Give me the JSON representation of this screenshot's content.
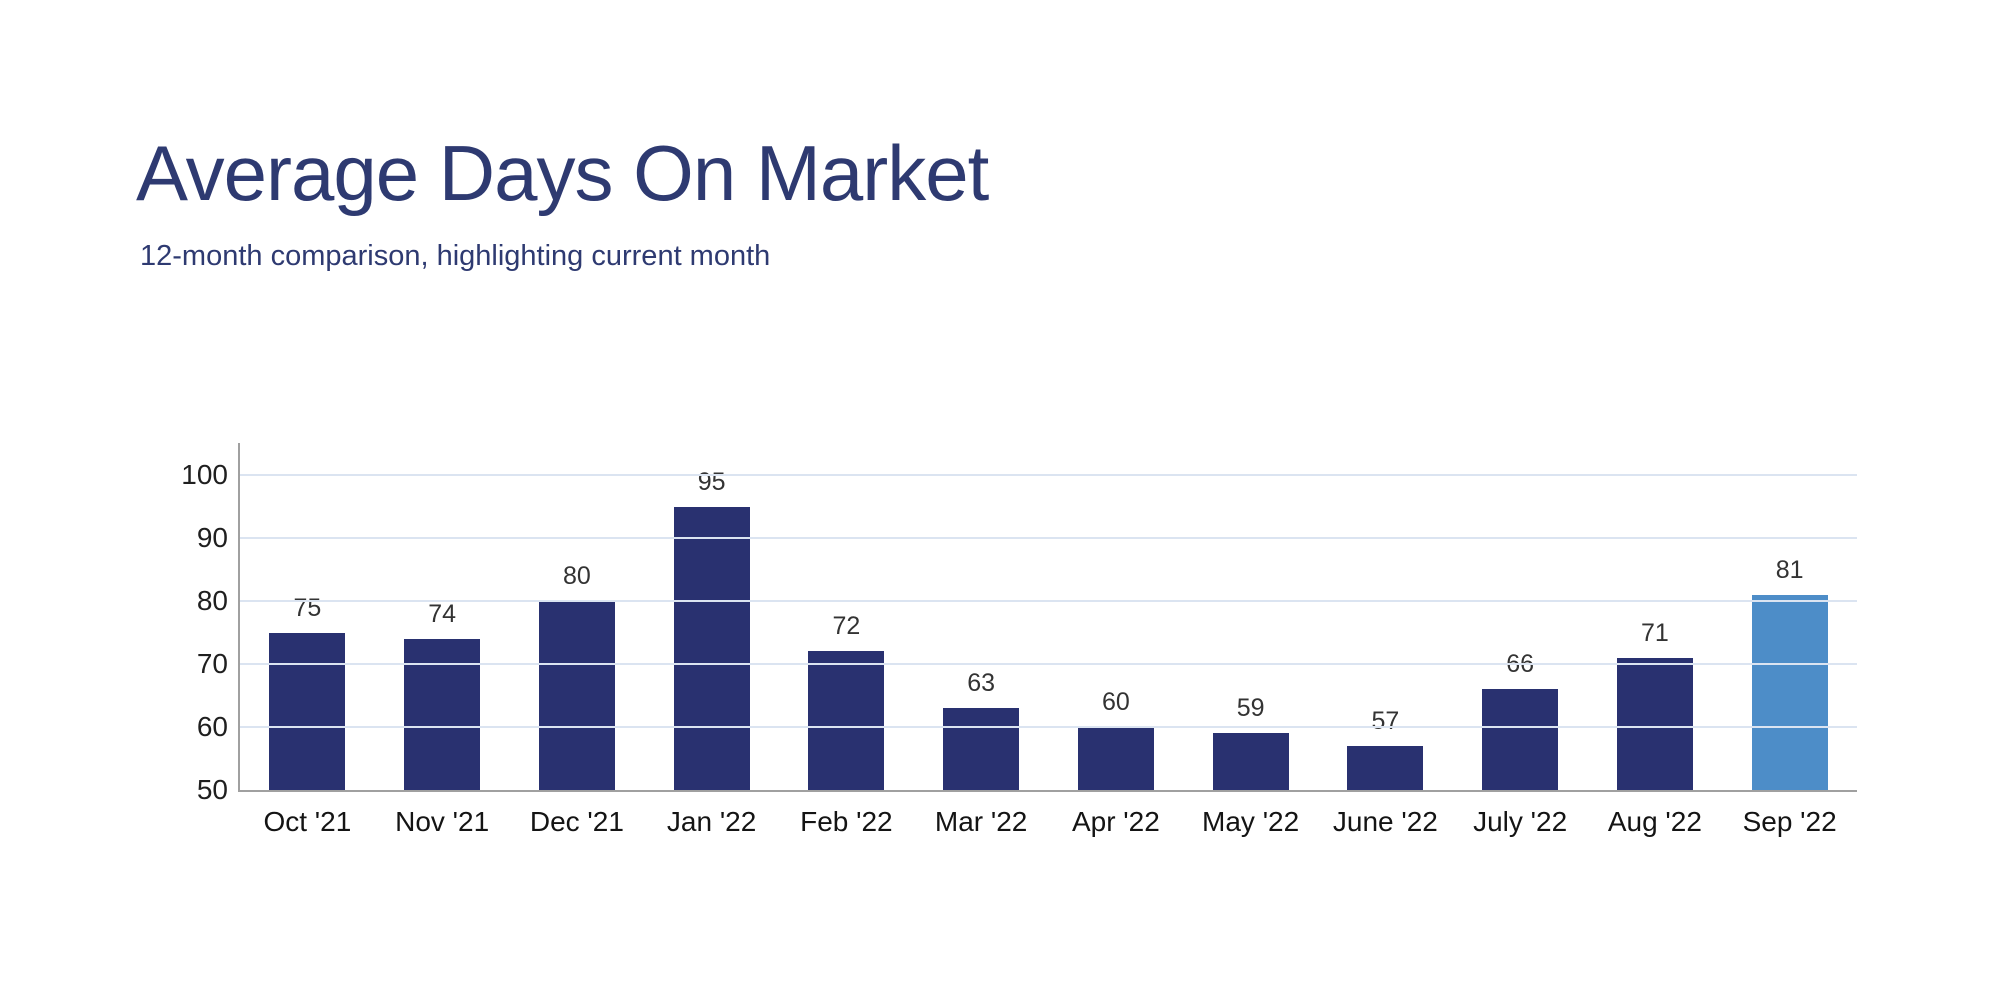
{
  "header": {
    "title": "Average Days On Market",
    "subtitle": "12-month comparison, highlighting current month"
  },
  "chart_data": {
    "type": "bar",
    "title": "Average Days On Market",
    "subtitle": "12-month comparison, highlighting current month",
    "categories": [
      "Oct '21",
      "Nov '21",
      "Dec '21",
      "Jan '22",
      "Feb '22",
      "Mar '22",
      "Apr '22",
      "May '22",
      "June '22",
      "July '22",
      "Aug '22",
      "Sep '22"
    ],
    "values": [
      75,
      74,
      80,
      95,
      72,
      63,
      60,
      59,
      57,
      66,
      71,
      81
    ],
    "highlight_index": 11,
    "xlabel": "",
    "ylabel": "",
    "ylim": [
      50,
      100
    ],
    "yticks": [
      50,
      60,
      70,
      80,
      90,
      100
    ],
    "grid": true,
    "legend": "none",
    "colors": {
      "bar": "#293170",
      "highlight_bar": "#4d8dc8",
      "gridline": "#dbe4f1",
      "axis": "#a0a0a0",
      "title": "#2e3a71",
      "value_label": "#333333",
      "tick_label": "#1f1f1f"
    }
  }
}
